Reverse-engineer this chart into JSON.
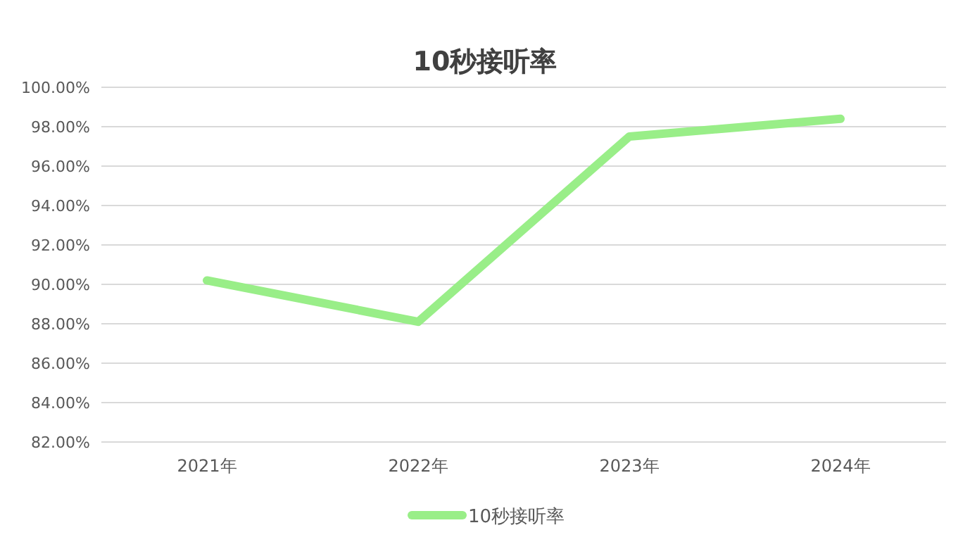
{
  "chart_data": {
    "type": "line",
    "title": "10秒接听率",
    "categories": [
      "2021年",
      "2022年",
      "2023年",
      "2024年"
    ],
    "series": [
      {
        "name": "10秒接听率",
        "color": "#99ee88",
        "values": [
          90.2,
          88.1,
          97.5,
          98.4
        ]
      }
    ],
    "ylim": [
      82,
      100
    ],
    "yticks": [
      {
        "value": 82,
        "label": "82.00%"
      },
      {
        "value": 84,
        "label": "84.00%"
      },
      {
        "value": 86,
        "label": "86.00%"
      },
      {
        "value": 88,
        "label": "88.00%"
      },
      {
        "value": 90,
        "label": "90.00%"
      },
      {
        "value": 92,
        "label": "92.00%"
      },
      {
        "value": 94,
        "label": "94.00%"
      },
      {
        "value": 96,
        "label": "96.00%"
      },
      {
        "value": 98,
        "label": "98.00%"
      },
      {
        "value": 100,
        "label": "100.00%"
      }
    ],
    "grid": "y",
    "legend": "bottom",
    "marker": "none",
    "line_style": "solid"
  }
}
